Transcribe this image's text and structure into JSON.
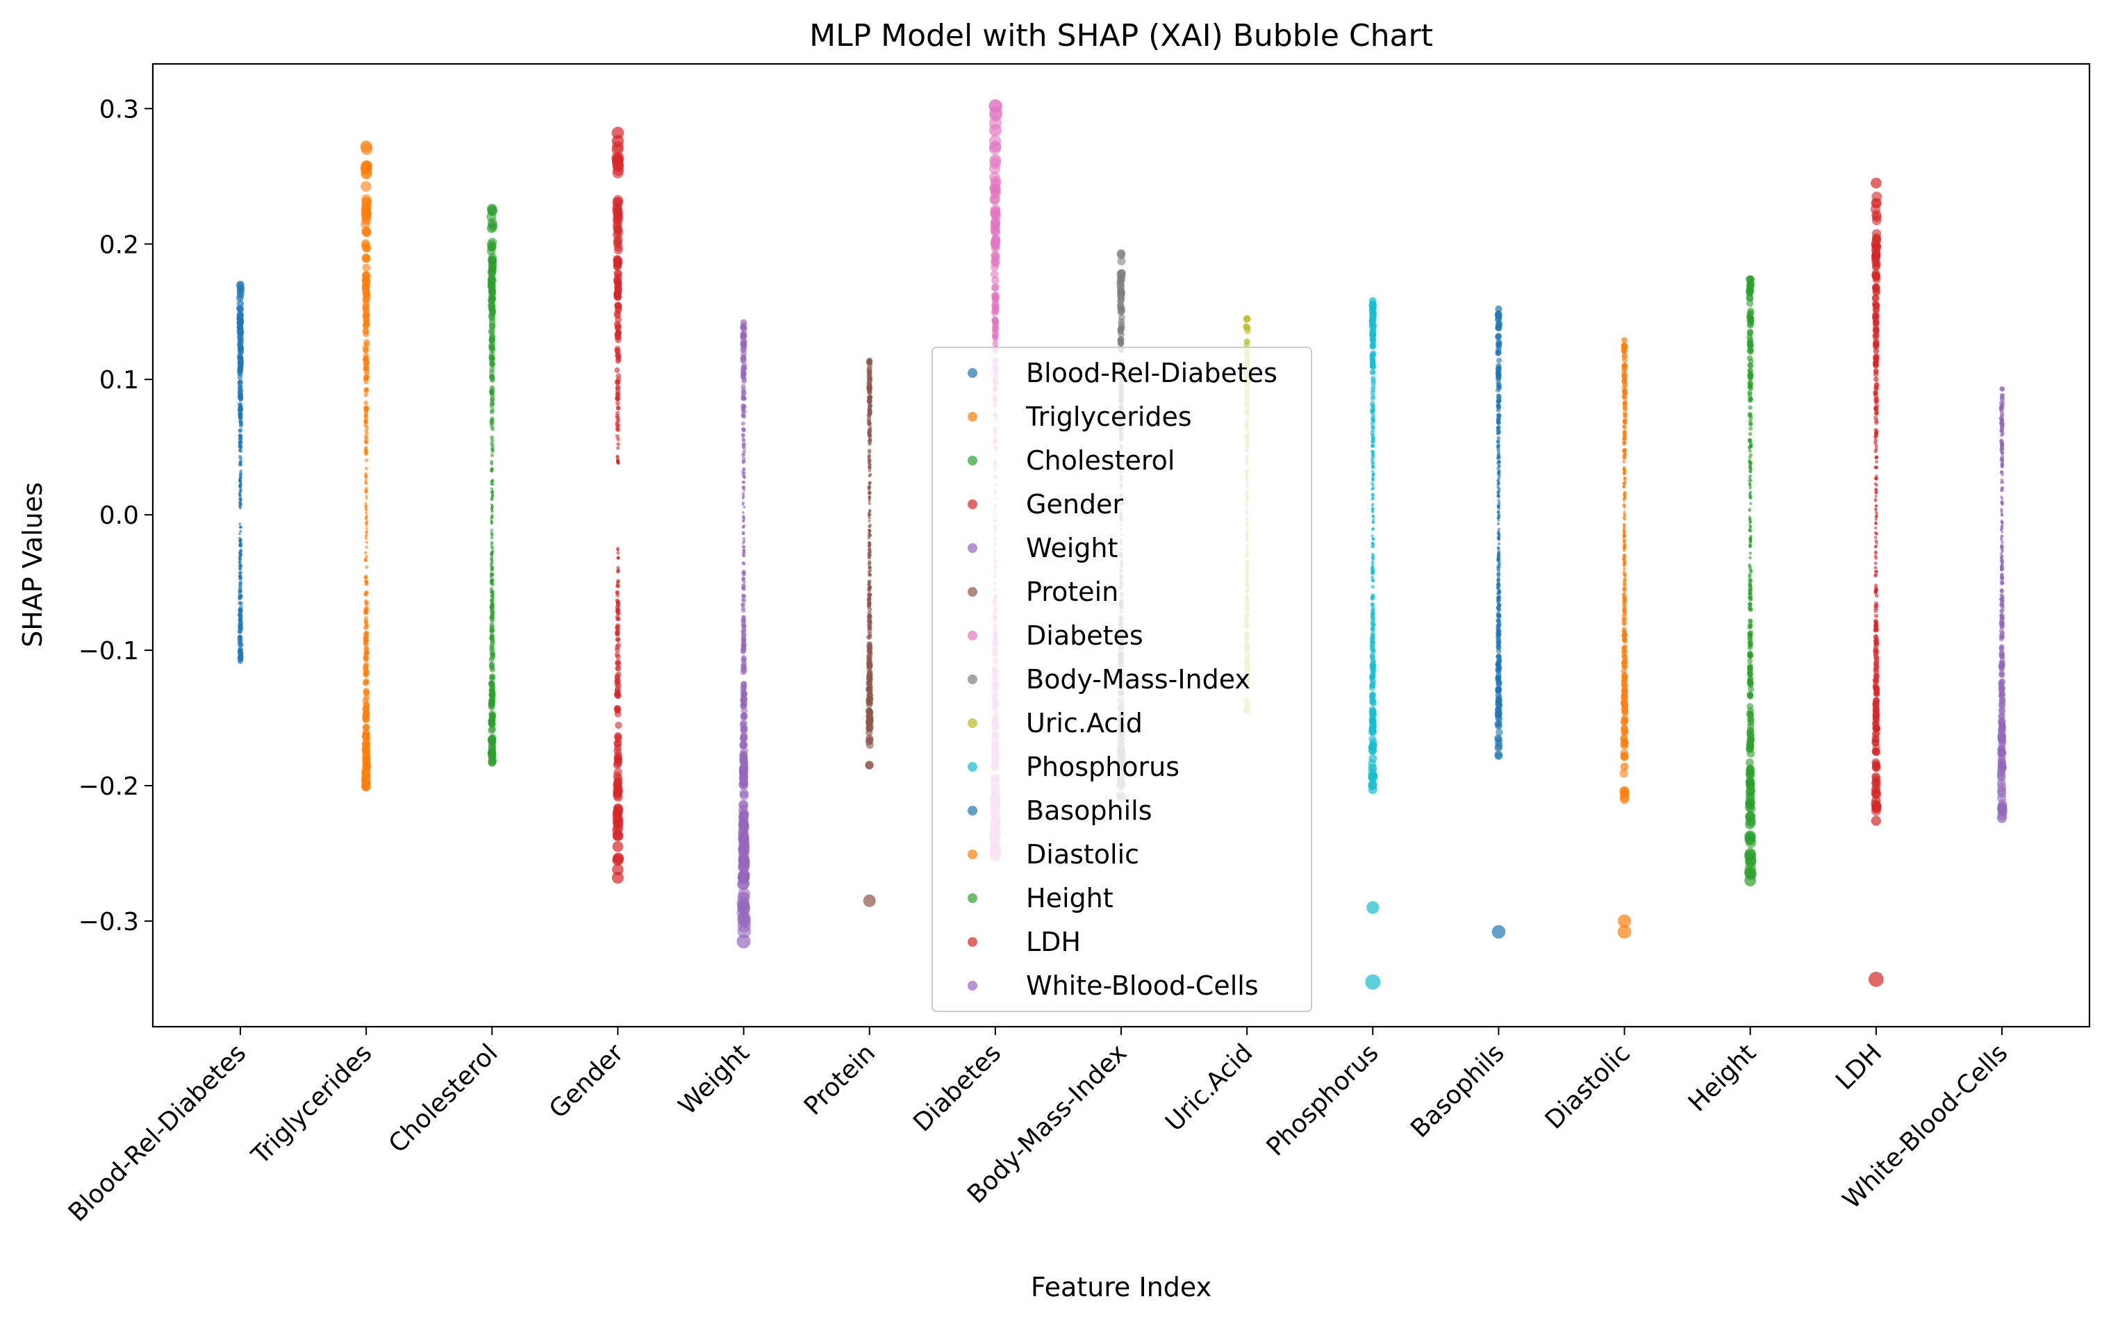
{
  "chart_data": {
    "type": "scatter",
    "title": "MLP Model with SHAP (XAI) Bubble Chart",
    "xlabel": "Feature Index",
    "ylabel": "SHAP Values",
    "ylim": [
      -0.378,
      0.333
    ],
    "yticks": [
      -0.3,
      -0.2,
      -0.1,
      0.0,
      0.1,
      0.2,
      0.3
    ],
    "ytick_labels": [
      "−0.3",
      "−0.2",
      "−0.1",
      "0.0",
      "0.1",
      "0.2",
      "0.3"
    ],
    "grid": false,
    "legend_position": "center",
    "categories": [
      "Blood-Rel-Diabetes",
      "Triglycerides",
      "Cholesterol",
      "Gender",
      "Weight",
      "Protein",
      "Diabetes",
      "Body-Mass-Index",
      "Uric.Acid",
      "Phosphorus",
      "Basophils",
      "Diastolic",
      "Height",
      "LDH",
      "White-Blood-Cells"
    ],
    "series": [
      {
        "name": "Blood-Rel-Diabetes",
        "color": "#1f77b4",
        "min": -0.108,
        "max": 0.17,
        "gap": [
          -0.005,
          0.005
        ],
        "outliers": [
          0.17,
          0.165,
          0.156,
          0.147,
          0.134,
          -0.093,
          -0.1,
          -0.108
        ]
      },
      {
        "name": "Triglycerides",
        "color": "#ff7f0e",
        "min": -0.201,
        "max": 0.272,
        "gap": null,
        "outliers": [
          0.272,
          0.221,
          0.177,
          0.172,
          0.165,
          -0.13,
          -0.14,
          -0.157,
          -0.157,
          -0.201
        ]
      },
      {
        "name": "Cholesterol",
        "color": "#2ca02c",
        "min": -0.183,
        "max": 0.226,
        "gap": null,
        "outliers": [
          0.226,
          0.198,
          0.188,
          0.178,
          0.165,
          0.155,
          -0.125,
          -0.133,
          -0.176,
          -0.183
        ]
      },
      {
        "name": "Gender",
        "color": "#d62728",
        "min": -0.268,
        "max": 0.282,
        "gap": [
          -0.024,
          0.038
        ],
        "outliers": [
          0.282,
          0.276,
          0.262,
          0.04,
          -0.025,
          -0.245,
          -0.255,
          -0.262,
          -0.268
        ]
      },
      {
        "name": "Weight",
        "color": "#9467bd",
        "min": -0.315,
        "max": 0.142,
        "gap": null,
        "outliers": [
          0.142,
          0.134,
          0.104,
          -0.14,
          -0.154,
          -0.17,
          -0.178,
          -0.195,
          -0.198,
          -0.227,
          -0.26,
          -0.268,
          -0.272,
          -0.283,
          -0.29,
          -0.315
        ]
      },
      {
        "name": "Protein",
        "color": "#8c564b",
        "min": -0.185,
        "max": 0.114,
        "gap": null,
        "outliers": [
          0.114,
          0.105,
          0.096,
          0.084,
          0.078,
          -0.1,
          -0.112,
          -0.158,
          -0.165,
          -0.185,
          -0.285
        ]
      },
      {
        "name": "Diabetes",
        "color": "#e377c2",
        "min": -0.252,
        "max": 0.302,
        "gap": null,
        "outliers": [
          0.302,
          0.284,
          0.272,
          0.262,
          0.06,
          -0.088,
          -0.095,
          -0.118,
          -0.137,
          -0.163,
          -0.195,
          -0.215,
          -0.236,
          -0.252
        ]
      },
      {
        "name": "Body-Mass-Index",
        "color": "#7f7f7f",
        "min": -0.21,
        "max": 0.193,
        "gap": null,
        "outliers": [
          0.193,
          0.159,
          0.129
        ]
      },
      {
        "name": "Uric.Acid",
        "color": "#bcbd22",
        "min": -0.145,
        "max": 0.145,
        "gap": null,
        "outliers": [
          0.145,
          0.138,
          0.128,
          0.118,
          -0.12,
          -0.145
        ]
      },
      {
        "name": "Phosphorus",
        "color": "#17becf",
        "min": -0.203,
        "max": 0.158,
        "gap": null,
        "outliers": [
          0.158,
          0.129,
          0.114,
          -0.118,
          -0.133,
          -0.148,
          -0.174,
          -0.18,
          -0.199,
          -0.203,
          -0.29,
          -0.345
        ]
      },
      {
        "name": "Basophils",
        "color": "#1f77b4",
        "min": -0.178,
        "max": 0.152,
        "gap": null,
        "outliers": [
          0.152,
          0.11,
          0.103,
          0.095,
          0.084,
          0.079,
          0.071,
          -0.088,
          -0.098,
          -0.115,
          -0.118,
          -0.156,
          -0.166,
          -0.178,
          -0.308
        ]
      },
      {
        "name": "Diastolic",
        "color": "#ff7f0e",
        "min": -0.21,
        "max": 0.129,
        "gap": null,
        "outliers": [
          0.129,
          0.124,
          0.11,
          0.099,
          -0.13,
          -0.14,
          -0.158,
          -0.168,
          -0.186,
          -0.205,
          -0.21,
          -0.3,
          -0.308
        ]
      },
      {
        "name": "Height",
        "color": "#2ca02c",
        "min": -0.27,
        "max": 0.174,
        "gap": null,
        "outliers": [
          0.174,
          0.14,
          0.135,
          0.125,
          -0.16,
          -0.17,
          -0.188,
          -0.2,
          -0.214,
          -0.223,
          -0.24,
          -0.25,
          -0.27
        ]
      },
      {
        "name": "LDH",
        "color": "#d62728",
        "min": -0.226,
        "max": 0.245,
        "gap": null,
        "outliers": [
          0.245,
          0.167,
          0.142,
          0.128,
          0.121,
          0.113,
          0.1,
          0.094,
          0.078,
          -0.11,
          -0.128,
          -0.152,
          -0.211,
          -0.226,
          -0.343
        ]
      },
      {
        "name": "White-Blood-Cells",
        "color": "#9467bd",
        "min": -0.224,
        "max": 0.093,
        "gap": null,
        "outliers": [
          0.093,
          0.079,
          0.07,
          0.062,
          0.052,
          -0.112,
          -0.128,
          -0.145,
          -0.176,
          -0.224
        ]
      }
    ]
  }
}
